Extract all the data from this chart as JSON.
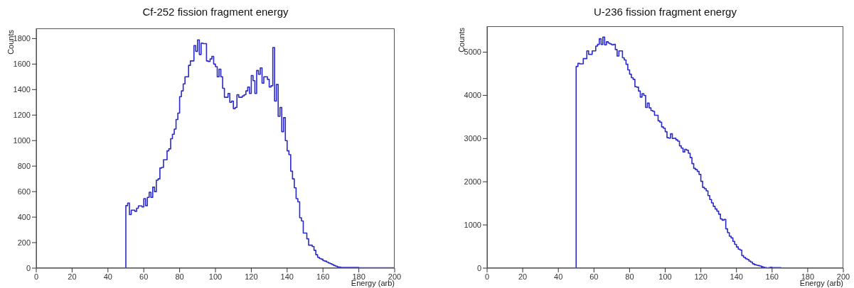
{
  "chart_data": [
    {
      "type": "histogram",
      "title": "Cf-252 fission fragment energy",
      "xlabel": "Energy (arb)",
      "ylabel": "Counts",
      "color": "#2a2ac8",
      "bins": [
        50,
        51,
        52,
        53,
        54,
        55,
        56,
        57,
        58,
        59,
        60,
        61,
        62,
        63,
        64,
        65,
        66,
        67,
        68,
        69,
        70,
        71,
        72,
        73,
        74,
        75,
        76,
        77,
        78,
        79,
        80,
        81,
        82,
        83,
        84,
        85,
        86,
        87,
        88,
        89,
        90,
        91,
        92,
        93,
        94,
        95,
        96,
        97,
        98,
        99,
        100,
        101,
        102,
        103,
        104,
        105,
        106,
        107,
        108,
        109,
        110,
        111,
        112,
        113,
        114,
        115,
        116,
        117,
        118,
        119,
        120,
        121,
        122,
        123,
        124,
        125,
        126,
        127,
        128,
        129,
        130,
        131,
        132,
        133,
        134,
        135,
        136,
        137,
        138,
        139,
        140,
        141,
        142,
        143,
        144,
        145,
        146,
        147,
        148,
        149,
        150,
        151,
        152,
        153,
        154,
        155,
        156,
        157,
        158,
        159,
        160,
        161,
        162,
        163,
        164,
        165,
        166,
        167,
        168,
        169,
        170,
        171,
        172,
        173,
        174,
        175,
        176,
        177,
        178,
        179,
        180,
        181,
        182,
        183,
        184,
        185,
        186,
        187,
        188,
        189,
        190,
        191,
        192,
        193,
        194,
        195,
        196,
        197,
        198,
        199,
        200
      ],
      "values": [
        490,
        510,
        420,
        455,
        455,
        445,
        470,
        488,
        488,
        480,
        545,
        490,
        555,
        595,
        555,
        635,
        600,
        690,
        700,
        785,
        790,
        850,
        850,
        920,
        935,
        1015,
        1050,
        1090,
        1165,
        1215,
        1345,
        1390,
        1445,
        1500,
        1500,
        1590,
        1625,
        1625,
        1745,
        1700,
        1790,
        1675,
        1765,
        1760,
        1760,
        1625,
        1620,
        1640,
        1660,
        1600,
        1580,
        1500,
        1560,
        1500,
        1410,
        1340,
        1340,
        1370,
        1300,
        1310,
        1250,
        1260,
        1360,
        1340,
        1340,
        1350,
        1360,
        1390,
        1420,
        1370,
        1510,
        1470,
        1370,
        1550,
        1520,
        1570,
        1450,
        1500,
        1500,
        1480,
        1420,
        1430,
        1730,
        1310,
        1440,
        1190,
        1260,
        1070,
        1180,
        1000,
        920,
        890,
        760,
        700,
        630,
        545,
        520,
        395,
        370,
        275,
        275,
        230,
        180,
        180,
        170,
        140,
        105,
        85,
        75,
        70,
        58,
        55,
        47,
        40,
        35,
        28,
        20,
        15,
        10,
        8,
        5,
        5,
        5,
        5,
        5,
        5,
        5,
        5,
        5,
        5,
        3,
        3,
        3,
        3,
        3,
        3,
        3,
        3,
        3,
        3,
        3,
        3,
        3,
        3,
        3,
        3,
        3,
        3,
        3,
        3
      ],
      "xlim": [
        0,
        200
      ],
      "xticks": [
        0,
        20,
        40,
        60,
        80,
        100,
        120,
        140,
        160,
        180,
        200
      ],
      "ylim": [
        0,
        1880
      ],
      "yticks": [
        0,
        200,
        400,
        600,
        800,
        1000,
        1200,
        1400,
        1600,
        1800
      ]
    },
    {
      "type": "histogram",
      "title": "U-236 fission fragment energy",
      "xlabel": "Energy (arb)",
      "ylabel": "Counts",
      "color": "#2a2ac8",
      "bins": [
        50,
        51,
        52,
        53,
        54,
        55,
        56,
        57,
        58,
        59,
        60,
        61,
        62,
        63,
        64,
        65,
        66,
        67,
        68,
        69,
        70,
        71,
        72,
        73,
        74,
        75,
        76,
        77,
        78,
        79,
        80,
        81,
        82,
        83,
        84,
        85,
        86,
        87,
        88,
        89,
        90,
        91,
        92,
        93,
        94,
        95,
        96,
        97,
        98,
        99,
        100,
        101,
        102,
        103,
        104,
        105,
        106,
        107,
        108,
        109,
        110,
        111,
        112,
        113,
        114,
        115,
        116,
        117,
        118,
        119,
        120,
        121,
        122,
        123,
        124,
        125,
        126,
        127,
        128,
        129,
        130,
        131,
        132,
        133,
        134,
        135,
        136,
        137,
        138,
        139,
        140,
        141,
        142,
        143,
        144,
        145,
        146,
        147,
        148,
        149,
        150,
        151,
        152,
        153,
        154,
        155,
        156,
        157,
        158,
        159,
        160,
        161,
        162,
        163,
        164,
        165,
        166,
        167,
        168,
        169,
        170,
        171,
        172,
        173,
        174,
        175,
        176,
        177,
        178,
        179,
        180,
        181,
        182,
        183,
        184,
        185,
        186,
        187,
        188,
        189,
        190,
        191,
        192,
        193,
        194,
        195,
        196,
        197,
        198,
        199,
        200
      ],
      "values": [
        4670,
        4740,
        4730,
        4730,
        4850,
        4850,
        5030,
        4950,
        4950,
        5030,
        5030,
        5140,
        5180,
        5310,
        5180,
        5350,
        5170,
        5240,
        5210,
        5190,
        5170,
        5180,
        5060,
        4910,
        5030,
        5030,
        4870,
        4820,
        4720,
        4590,
        4490,
        4410,
        4370,
        4200,
        4190,
        4100,
        3960,
        4040,
        4000,
        3720,
        3820,
        3710,
        3650,
        3630,
        3540,
        3540,
        3410,
        3380,
        3270,
        3240,
        3160,
        3020,
        3010,
        3110,
        3000,
        3010,
        2970,
        2940,
        2830,
        2780,
        2690,
        2750,
        2730,
        2660,
        2560,
        2420,
        2310,
        2280,
        2240,
        2170,
        2010,
        1870,
        1840,
        1790,
        1680,
        1590,
        1510,
        1430,
        1370,
        1320,
        1250,
        1140,
        1110,
        1130,
        910,
        820,
        740,
        700,
        620,
        550,
        490,
        440,
        420,
        290,
        250,
        220,
        200,
        165,
        140,
        100,
        80,
        70,
        60,
        50,
        30,
        20,
        10,
        0,
        10,
        20,
        10,
        10,
        10,
        10,
        10,
        0,
        0,
        0,
        0,
        0,
        0,
        0,
        0,
        0,
        0,
        0,
        0,
        0,
        0,
        0,
        0,
        0,
        0,
        0,
        0,
        0,
        0,
        0,
        0,
        0,
        0,
        0,
        0,
        0,
        0,
        0,
        0,
        0,
        0,
        0
      ],
      "xlim": [
        0,
        200
      ],
      "xticks": [
        0,
        20,
        40,
        60,
        80,
        100,
        120,
        140,
        160,
        180,
        200
      ],
      "ylim": [
        0,
        5600
      ],
      "yticks": [
        0,
        1000,
        2000,
        3000,
        4000,
        5000
      ]
    }
  ]
}
